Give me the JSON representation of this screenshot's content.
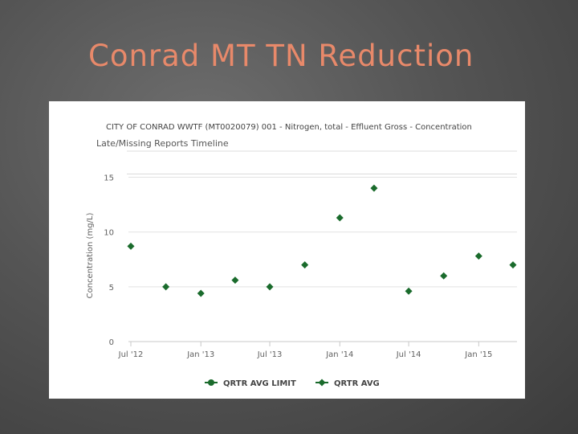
{
  "slide": {
    "title": "Conrad MT TN Reduction"
  },
  "colors": {
    "series": "#1a6b2c",
    "title_text": "#e8896a",
    "axis_text": "#606060"
  },
  "chart_data": {
    "type": "scatter",
    "title": "CITY OF CONRAD WWTF (MT0020079) 001 - Nitrogen, total - Effluent Gross - Concentration",
    "subtitle": "Late/Missing Reports Timeline",
    "xlabel": "",
    "ylabel": "Concentration (mg/L)",
    "x_ticks": [
      "Jul '12",
      "Jan '13",
      "Jul '13",
      "Jan '14",
      "Jul '14",
      "Jan '15"
    ],
    "y_ticks": [
      "0",
      "5",
      "10",
      "15"
    ],
    "ylim": [
      0,
      15.7
    ],
    "grid": true,
    "legend_position": "bottom",
    "series": [
      {
        "name": "QRTR AVG LIMIT",
        "marker": "circle",
        "x": [],
        "y": []
      },
      {
        "name": "QRTR AVG",
        "marker": "diamond",
        "x": [
          "2012-07-01",
          "2012-10-01",
          "2013-01-01",
          "2013-04-01",
          "2013-07-01",
          "2013-10-01",
          "2014-01-01",
          "2014-04-01",
          "2014-07-01",
          "2014-10-01",
          "2015-01-01",
          "2015-04-01"
        ],
        "y": [
          8.7,
          5.0,
          4.4,
          5.6,
          5.0,
          7.0,
          11.3,
          14.0,
          4.6,
          6.0,
          7.8,
          7.0
        ]
      }
    ]
  }
}
